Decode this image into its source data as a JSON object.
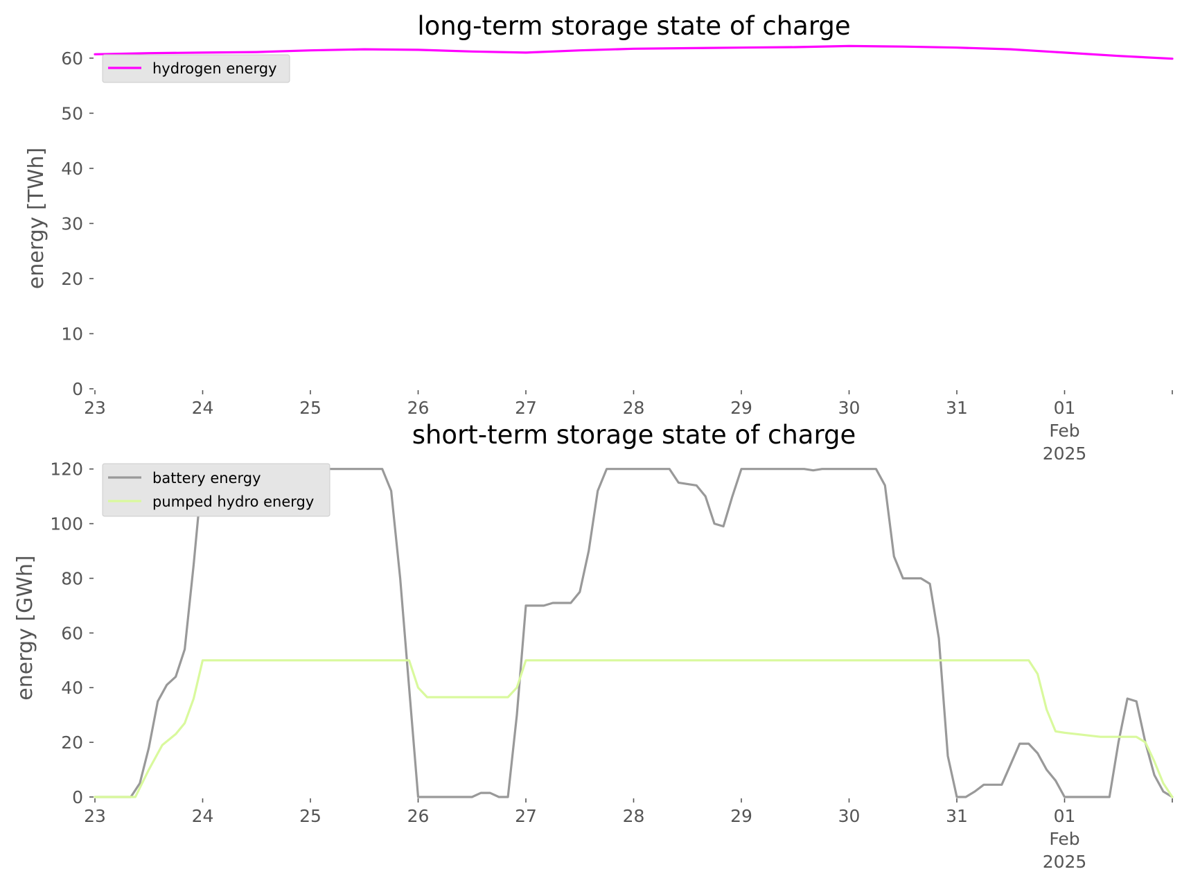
{
  "chart_data": [
    {
      "type": "line",
      "title": "long-term storage state of charge",
      "ylabel": "energy [TWh]",
      "xlabel": "",
      "xlim": [
        "2025-01-23T00:00",
        "2025-02-02T00:00"
      ],
      "ylim": [
        0,
        63
      ],
      "yticks": [
        0,
        10,
        20,
        30,
        40,
        50,
        60
      ],
      "xticks": [
        {
          "at": "2025-01-23T00:00",
          "lines": [
            "23"
          ]
        },
        {
          "at": "2025-01-24T00:00",
          "lines": [
            "24"
          ]
        },
        {
          "at": "2025-01-25T00:00",
          "lines": [
            "25"
          ]
        },
        {
          "at": "2025-01-26T00:00",
          "lines": [
            "26"
          ]
        },
        {
          "at": "2025-01-27T00:00",
          "lines": [
            "27"
          ]
        },
        {
          "at": "2025-01-28T00:00",
          "lines": [
            "28"
          ]
        },
        {
          "at": "2025-01-29T00:00",
          "lines": [
            "29"
          ]
        },
        {
          "at": "2025-01-30T00:00",
          "lines": [
            "30"
          ]
        },
        {
          "at": "2025-01-31T00:00",
          "lines": [
            "31"
          ]
        },
        {
          "at": "2025-02-01T00:00",
          "lines": [
            "01",
            "Feb",
            "2025"
          ]
        },
        {
          "at": "2025-02-02T00:00",
          "lines": []
        }
      ],
      "grid": false,
      "legend": "top-left",
      "series": [
        {
          "name": "hydrogen energy",
          "color": "#ff00ff",
          "points": [
            [
              "2025-01-23T00:00",
              60.7
            ],
            [
              "2025-01-23T12:00",
              60.9
            ],
            [
              "2025-01-24T00:00",
              61.0
            ],
            [
              "2025-01-24T12:00",
              61.1
            ],
            [
              "2025-01-25T00:00",
              61.4
            ],
            [
              "2025-01-25T12:00",
              61.6
            ],
            [
              "2025-01-26T00:00",
              61.5
            ],
            [
              "2025-01-26T12:00",
              61.2
            ],
            [
              "2025-01-27T00:00",
              61.0
            ],
            [
              "2025-01-27T12:00",
              61.4
            ],
            [
              "2025-01-28T00:00",
              61.7
            ],
            [
              "2025-01-28T12:00",
              61.8
            ],
            [
              "2025-01-29T00:00",
              61.9
            ],
            [
              "2025-01-29T12:00",
              62.0
            ],
            [
              "2025-01-30T00:00",
              62.2
            ],
            [
              "2025-01-30T12:00",
              62.1
            ],
            [
              "2025-01-31T00:00",
              61.9
            ],
            [
              "2025-01-31T12:00",
              61.6
            ],
            [
              "2025-02-01T00:00",
              61.0
            ],
            [
              "2025-02-01T12:00",
              60.4
            ],
            [
              "2025-02-02T00:00",
              59.9
            ]
          ]
        }
      ]
    },
    {
      "type": "line",
      "title": "short-term storage state of charge",
      "ylabel": "energy [GWh]",
      "xlabel": "",
      "xlim": [
        "2025-01-23T00:00",
        "2025-02-02T00:00"
      ],
      "ylim": [
        0,
        125
      ],
      "yticks": [
        0,
        20,
        40,
        60,
        80,
        100,
        120
      ],
      "xticks": [
        {
          "at": "2025-01-23T00:00",
          "lines": [
            "23"
          ]
        },
        {
          "at": "2025-01-24T00:00",
          "lines": [
            "24"
          ]
        },
        {
          "at": "2025-01-25T00:00",
          "lines": [
            "25"
          ]
        },
        {
          "at": "2025-01-26T00:00",
          "lines": [
            "26"
          ]
        },
        {
          "at": "2025-01-27T00:00",
          "lines": [
            "27"
          ]
        },
        {
          "at": "2025-01-28T00:00",
          "lines": [
            "28"
          ]
        },
        {
          "at": "2025-01-29T00:00",
          "lines": [
            "29"
          ]
        },
        {
          "at": "2025-01-30T00:00",
          "lines": [
            "30"
          ]
        },
        {
          "at": "2025-01-31T00:00",
          "lines": [
            "31"
          ]
        },
        {
          "at": "2025-02-01T00:00",
          "lines": [
            "01",
            "Feb",
            "2025"
          ]
        },
        {
          "at": "2025-02-02T00:00",
          "lines": []
        }
      ],
      "grid": false,
      "legend": "top-left",
      "series": [
        {
          "name": "battery energy",
          "color": "#999999",
          "points": [
            [
              "2025-01-23T00:00",
              0
            ],
            [
              "2025-01-23T08:00",
              0
            ],
            [
              "2025-01-23T10:00",
              5
            ],
            [
              "2025-01-23T12:00",
              18
            ],
            [
              "2025-01-23T14:00",
              35
            ],
            [
              "2025-01-23T16:00",
              41
            ],
            [
              "2025-01-23T18:00",
              44
            ],
            [
              "2025-01-23T20:00",
              54
            ],
            [
              "2025-01-23T22:00",
              85
            ],
            [
              "2025-01-24T00:00",
              120
            ],
            [
              "2025-01-25T16:00",
              120
            ],
            [
              "2025-01-25T18:00",
              112
            ],
            [
              "2025-01-25T20:00",
              80
            ],
            [
              "2025-01-25T22:00",
              40
            ],
            [
              "2025-01-26T00:00",
              0
            ],
            [
              "2025-01-26T12:00",
              0
            ],
            [
              "2025-01-26T14:00",
              1.5
            ],
            [
              "2025-01-26T16:00",
              1.5
            ],
            [
              "2025-01-26T18:00",
              0
            ],
            [
              "2025-01-26T20:00",
              0
            ],
            [
              "2025-01-26T22:00",
              30
            ],
            [
              "2025-01-27T00:00",
              70
            ],
            [
              "2025-01-27T04:00",
              70
            ],
            [
              "2025-01-27T06:00",
              71
            ],
            [
              "2025-01-27T10:00",
              71
            ],
            [
              "2025-01-27T12:00",
              75
            ],
            [
              "2025-01-27T14:00",
              90
            ],
            [
              "2025-01-27T16:00",
              112
            ],
            [
              "2025-01-27T18:00",
              120
            ],
            [
              "2025-01-28T08:00",
              120
            ],
            [
              "2025-01-28T10:00",
              115
            ],
            [
              "2025-01-28T14:00",
              114
            ],
            [
              "2025-01-28T16:00",
              110
            ],
            [
              "2025-01-28T18:00",
              100
            ],
            [
              "2025-01-28T20:00",
              99
            ],
            [
              "2025-01-28T22:00",
              110
            ],
            [
              "2025-01-29T00:00",
              120
            ],
            [
              "2025-01-29T14:00",
              120
            ],
            [
              "2025-01-29T16:00",
              119.5
            ],
            [
              "2025-01-29T18:00",
              120
            ],
            [
              "2025-01-30T06:00",
              120
            ],
            [
              "2025-01-30T08:00",
              114
            ],
            [
              "2025-01-30T10:00",
              88
            ],
            [
              "2025-01-30T12:00",
              80
            ],
            [
              "2025-01-30T16:00",
              80
            ],
            [
              "2025-01-30T18:00",
              78
            ],
            [
              "2025-01-30T20:00",
              58
            ],
            [
              "2025-01-30T22:00",
              15
            ],
            [
              "2025-01-31T00:00",
              0
            ],
            [
              "2025-01-31T02:00",
              0
            ],
            [
              "2025-01-31T04:00",
              2
            ],
            [
              "2025-01-31T06:00",
              4.5
            ],
            [
              "2025-01-31T10:00",
              4.5
            ],
            [
              "2025-01-31T12:00",
              12
            ],
            [
              "2025-01-31T14:00",
              19.5
            ],
            [
              "2025-01-31T16:00",
              19.5
            ],
            [
              "2025-01-31T18:00",
              16
            ],
            [
              "2025-01-31T20:00",
              10
            ],
            [
              "2025-01-31T22:00",
              6
            ],
            [
              "2025-02-01T00:00",
              0
            ],
            [
              "2025-02-01T10:00",
              0
            ],
            [
              "2025-02-01T12:00",
              20
            ],
            [
              "2025-02-01T14:00",
              36
            ],
            [
              "2025-02-01T16:00",
              35
            ],
            [
              "2025-02-01T18:00",
              20
            ],
            [
              "2025-02-01T20:00",
              8
            ],
            [
              "2025-02-01T22:00",
              2
            ],
            [
              "2025-02-02T00:00",
              0
            ]
          ]
        },
        {
          "name": "pumped hydro energy",
          "color": "#d9f99d",
          "points": [
            [
              "2025-01-23T00:00",
              0
            ],
            [
              "2025-01-23T09:00",
              0
            ],
            [
              "2025-01-23T12:00",
              10
            ],
            [
              "2025-01-23T15:00",
              19
            ],
            [
              "2025-01-23T18:00",
              23
            ],
            [
              "2025-01-23T20:00",
              27
            ],
            [
              "2025-01-23T22:00",
              36
            ],
            [
              "2025-01-24T00:00",
              50
            ],
            [
              "2025-01-25T22:00",
              50
            ],
            [
              "2025-01-26T00:00",
              40
            ],
            [
              "2025-01-26T02:00",
              36.5
            ],
            [
              "2025-01-26T20:00",
              36.5
            ],
            [
              "2025-01-26T22:00",
              40
            ],
            [
              "2025-01-27T00:00",
              50
            ],
            [
              "2025-01-31T16:00",
              50
            ],
            [
              "2025-01-31T18:00",
              45
            ],
            [
              "2025-01-31T20:00",
              32
            ],
            [
              "2025-01-31T22:00",
              24
            ],
            [
              "2025-02-01T00:00",
              23.5
            ],
            [
              "2025-02-01T08:00",
              22
            ],
            [
              "2025-02-01T16:00",
              22
            ],
            [
              "2025-02-01T18:00",
              20
            ],
            [
              "2025-02-01T20:00",
              13
            ],
            [
              "2025-02-01T22:00",
              5
            ],
            [
              "2025-02-02T00:00",
              0
            ]
          ]
        }
      ]
    }
  ]
}
